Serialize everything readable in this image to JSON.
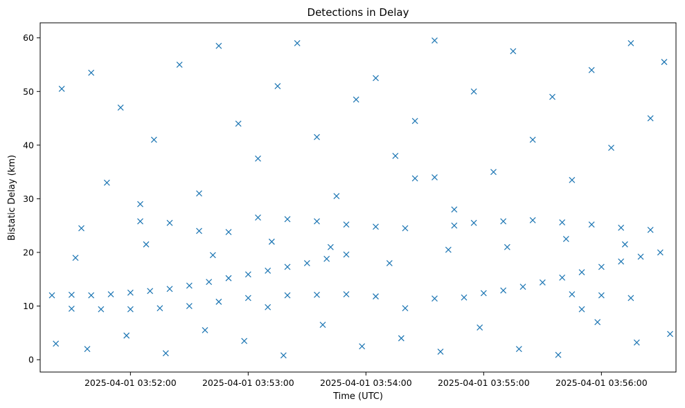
{
  "chart_data": {
    "type": "scatter",
    "title": "Detections in Delay",
    "xlabel": "Time (UTC)",
    "ylabel": "Bistatic Delay (km)",
    "marker": "x",
    "color": "#1f77b4",
    "x_axis": "datetime",
    "xlim": [
      "2025-04-01 03:51:14",
      "2025-04-01 03:56:38"
    ],
    "ylim": [
      -2.3,
      62.8
    ],
    "xticks": [
      "2025-04-01 03:52:00",
      "2025-04-01 03:53:00",
      "2025-04-01 03:54:00",
      "2025-04-01 03:55:00",
      "2025-04-01 03:56:00"
    ],
    "yticks": [
      0,
      10,
      20,
      30,
      40,
      50,
      60
    ],
    "grid": false,
    "legend": "none",
    "series": [
      {
        "points": [
          [
            "2025-04-01 03:51:20",
            12.0
          ],
          [
            "2025-04-01 03:51:30",
            12.1
          ],
          [
            "2025-04-01 03:51:40",
            12.0
          ],
          [
            "2025-04-01 03:51:50",
            12.2
          ],
          [
            "2025-04-01 03:52:00",
            12.5
          ],
          [
            "2025-04-01 03:52:10",
            12.8
          ],
          [
            "2025-04-01 03:52:20",
            13.2
          ],
          [
            "2025-04-01 03:52:30",
            13.8
          ],
          [
            "2025-04-01 03:52:40",
            14.5
          ],
          [
            "2025-04-01 03:52:50",
            15.2
          ],
          [
            "2025-04-01 03:53:00",
            15.9
          ],
          [
            "2025-04-01 03:53:10",
            16.6
          ],
          [
            "2025-04-01 03:53:20",
            17.3
          ],
          [
            "2025-04-01 03:53:30",
            18.0
          ],
          [
            "2025-04-01 03:53:40",
            18.8
          ],
          [
            "2025-04-01 03:53:50",
            19.6
          ],
          [
            "2025-04-01 03:51:30",
            9.5
          ],
          [
            "2025-04-01 03:51:45",
            9.4
          ],
          [
            "2025-04-01 03:52:00",
            9.4
          ],
          [
            "2025-04-01 03:52:15",
            9.6
          ],
          [
            "2025-04-01 03:52:30",
            10.0
          ],
          [
            "2025-04-01 03:52:45",
            10.8
          ],
          [
            "2025-04-01 03:53:00",
            11.5
          ],
          [
            "2025-04-01 03:53:10",
            9.8
          ],
          [
            "2025-04-01 03:53:20",
            12.0
          ],
          [
            "2025-04-01 03:53:35",
            12.1
          ],
          [
            "2025-04-01 03:53:50",
            12.2
          ],
          [
            "2025-04-01 03:54:05",
            11.8
          ],
          [
            "2025-04-01 03:54:20",
            9.6
          ],
          [
            "2025-04-01 03:54:35",
            11.4
          ],
          [
            "2025-04-01 03:54:50",
            11.6
          ],
          [
            "2025-04-01 03:55:00",
            12.4
          ],
          [
            "2025-04-01 03:55:10",
            12.9
          ],
          [
            "2025-04-01 03:55:20",
            13.6
          ],
          [
            "2025-04-01 03:55:30",
            14.4
          ],
          [
            "2025-04-01 03:55:40",
            15.3
          ],
          [
            "2025-04-01 03:55:50",
            16.3
          ],
          [
            "2025-04-01 03:56:00",
            17.3
          ],
          [
            "2025-04-01 03:56:10",
            18.3
          ],
          [
            "2025-04-01 03:56:20",
            19.2
          ],
          [
            "2025-04-01 03:56:30",
            20.0
          ],
          [
            "2025-04-01 03:55:45",
            12.2
          ],
          [
            "2025-04-01 03:56:00",
            12.0
          ],
          [
            "2025-04-01 03:56:15",
            11.5
          ],
          [
            "2025-04-01 03:55:50",
            9.4
          ],
          [
            "2025-04-01 03:52:05",
            25.8
          ],
          [
            "2025-04-01 03:52:20",
            25.5
          ],
          [
            "2025-04-01 03:52:35",
            24.0
          ],
          [
            "2025-04-01 03:52:50",
            23.8
          ],
          [
            "2025-04-01 03:53:05",
            26.5
          ],
          [
            "2025-04-01 03:53:20",
            26.2
          ],
          [
            "2025-04-01 03:53:35",
            25.8
          ],
          [
            "2025-04-01 03:53:50",
            25.2
          ],
          [
            "2025-04-01 03:54:05",
            24.8
          ],
          [
            "2025-04-01 03:54:20",
            24.5
          ],
          [
            "2025-04-01 03:54:25",
            33.8
          ],
          [
            "2025-04-01 03:54:35",
            34.0
          ],
          [
            "2025-04-01 03:54:45",
            25.0
          ],
          [
            "2025-04-01 03:54:55",
            25.5
          ],
          [
            "2025-04-01 03:55:10",
            25.8
          ],
          [
            "2025-04-01 03:55:25",
            26.0
          ],
          [
            "2025-04-01 03:55:40",
            25.6
          ],
          [
            "2025-04-01 03:55:55",
            25.2
          ],
          [
            "2025-04-01 03:56:10",
            24.6
          ],
          [
            "2025-04-01 03:56:25",
            24.2
          ],
          [
            "2025-04-01 03:51:25",
            50.5
          ],
          [
            "2025-04-01 03:51:35",
            24.5
          ],
          [
            "2025-04-01 03:51:40",
            53.5
          ],
          [
            "2025-04-01 03:51:48",
            33.0
          ],
          [
            "2025-04-01 03:51:55",
            47.0
          ],
          [
            "2025-04-01 03:52:05",
            29.0
          ],
          [
            "2025-04-01 03:52:12",
            41.0
          ],
          [
            "2025-04-01 03:52:25",
            55.0
          ],
          [
            "2025-04-01 03:52:35",
            31.0
          ],
          [
            "2025-04-01 03:52:45",
            58.5
          ],
          [
            "2025-04-01 03:52:55",
            44.0
          ],
          [
            "2025-04-01 03:53:05",
            37.5
          ],
          [
            "2025-04-01 03:53:15",
            51.0
          ],
          [
            "2025-04-01 03:53:25",
            59.0
          ],
          [
            "2025-04-01 03:53:35",
            41.5
          ],
          [
            "2025-04-01 03:53:45",
            30.5
          ],
          [
            "2025-04-01 03:53:55",
            48.5
          ],
          [
            "2025-04-01 03:54:05",
            52.5
          ],
          [
            "2025-04-01 03:54:15",
            38.0
          ],
          [
            "2025-04-01 03:54:25",
            44.5
          ],
          [
            "2025-04-01 03:54:35",
            59.5
          ],
          [
            "2025-04-01 03:54:45",
            28.0
          ],
          [
            "2025-04-01 03:54:55",
            50.0
          ],
          [
            "2025-04-01 03:55:05",
            35.0
          ],
          [
            "2025-04-01 03:55:15",
            57.5
          ],
          [
            "2025-04-01 03:55:25",
            41.0
          ],
          [
            "2025-04-01 03:55:35",
            49.0
          ],
          [
            "2025-04-01 03:55:45",
            33.5
          ],
          [
            "2025-04-01 03:55:55",
            54.0
          ],
          [
            "2025-04-01 03:56:05",
            39.5
          ],
          [
            "2025-04-01 03:56:15",
            59.0
          ],
          [
            "2025-04-01 03:56:25",
            45.0
          ],
          [
            "2025-04-01 03:56:32",
            55.5
          ],
          [
            "2025-04-01 03:51:22",
            3.0
          ],
          [
            "2025-04-01 03:51:38",
            2.0
          ],
          [
            "2025-04-01 03:51:58",
            4.5
          ],
          [
            "2025-04-01 03:52:18",
            1.2
          ],
          [
            "2025-04-01 03:52:38",
            5.5
          ],
          [
            "2025-04-01 03:52:58",
            3.5
          ],
          [
            "2025-04-01 03:53:18",
            0.8
          ],
          [
            "2025-04-01 03:53:38",
            6.5
          ],
          [
            "2025-04-01 03:53:58",
            2.5
          ],
          [
            "2025-04-01 03:54:18",
            4.0
          ],
          [
            "2025-04-01 03:54:38",
            1.5
          ],
          [
            "2025-04-01 03:54:58",
            6.0
          ],
          [
            "2025-04-01 03:55:18",
            2.0
          ],
          [
            "2025-04-01 03:55:38",
            0.9
          ],
          [
            "2025-04-01 03:55:58",
            7.0
          ],
          [
            "2025-04-01 03:56:18",
            3.2
          ],
          [
            "2025-04-01 03:56:35",
            4.8
          ],
          [
            "2025-04-01 03:51:32",
            19.0
          ],
          [
            "2025-04-01 03:52:08",
            21.5
          ],
          [
            "2025-04-01 03:52:42",
            19.5
          ],
          [
            "2025-04-01 03:53:12",
            22.0
          ],
          [
            "2025-04-01 03:53:42",
            21.0
          ],
          [
            "2025-04-01 03:54:12",
            18.0
          ],
          [
            "2025-04-01 03:54:42",
            20.5
          ],
          [
            "2025-04-01 03:55:12",
            21.0
          ],
          [
            "2025-04-01 03:55:42",
            22.5
          ],
          [
            "2025-04-01 03:56:12",
            21.5
          ]
        ]
      }
    ]
  }
}
